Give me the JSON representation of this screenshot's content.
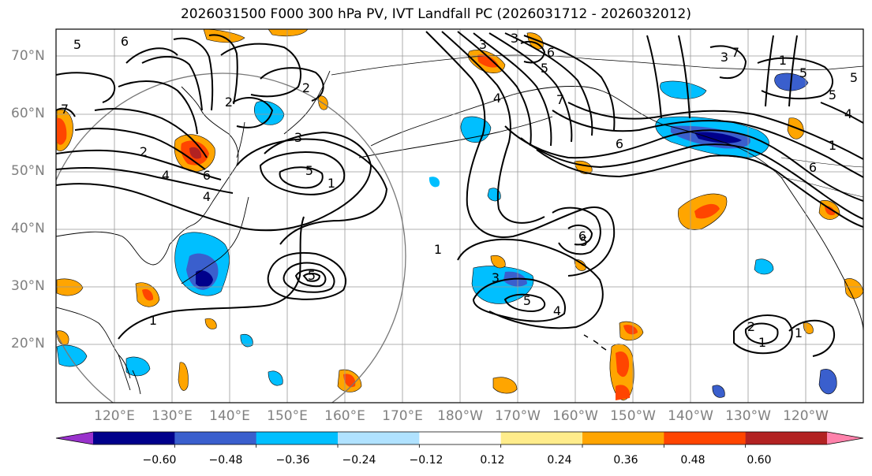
{
  "title": "2026031500 F000 300 hPa PV, IVT Landfall PC (2026031712 - 2026032012)",
  "lat_labels": [
    "70°N",
    "60°N",
    "50°N",
    "40°N",
    "30°N",
    "20°N"
  ],
  "lon_labels": [
    "120°E",
    "130°E",
    "140°E",
    "150°E",
    "160°E",
    "170°E",
    "180°W",
    "170°W",
    "160°W",
    "150°W",
    "140°W",
    "130°W",
    "120°W"
  ],
  "colorbar": {
    "ticks": [
      "−0.60",
      "−0.48",
      "−0.36",
      "−0.24",
      "−0.12",
      "0.12",
      "0.24",
      "0.36",
      "0.48",
      "0.60"
    ],
    "colors": [
      "#9932cc",
      "#00008b",
      "#3a5fcd",
      "#00bfff",
      "#b0e2ff",
      "#ffffff",
      "#ffec8b",
      "#ffa500",
      "#ff4500",
      "#b22222",
      "#ff82ab"
    ]
  },
  "contour_labels": [
    "5",
    "6",
    "7",
    "4",
    "2",
    "3",
    "5",
    "6",
    "4",
    "1",
    "5",
    "2",
    "1",
    "2",
    "3",
    "4",
    "5",
    "6",
    "1",
    "3",
    "4",
    "5",
    "6",
    "7",
    "1",
    "5",
    "6",
    "7",
    "3",
    "5",
    "6",
    "1",
    "5",
    "4",
    "3",
    "2",
    "1",
    "5",
    "1"
  ]
}
